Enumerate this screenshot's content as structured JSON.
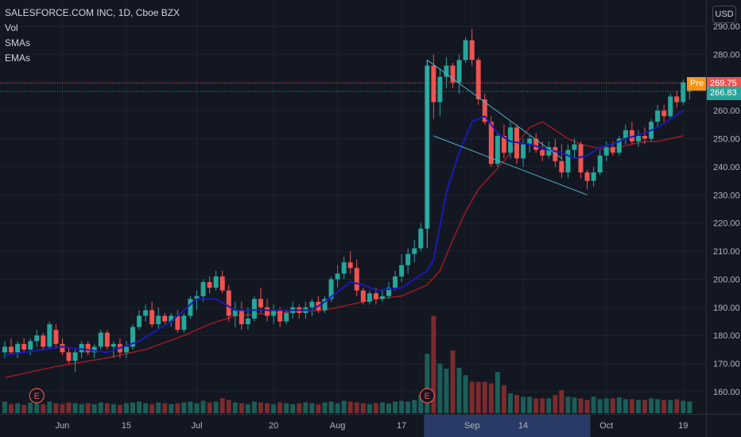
{
  "legend": {
    "title": "SALESFORCE.COM INC, 1D, Cboe BZX",
    "items": [
      "Vol",
      "SMAs",
      "EMAs"
    ]
  },
  "currency": "USD",
  "price_tags": {
    "pre_label": "Pre",
    "pre_value": "269.75",
    "last_value": "266.83"
  },
  "colors": {
    "background": "#131722",
    "grid": "#1f2330",
    "up": "#26a69a",
    "down": "#ef5350",
    "sma": "#1a1ab8",
    "ema": "#9c1b24",
    "wedge": "#4fb3c4",
    "pre_tag": "#f7931a",
    "last_tag": "#26a69a",
    "earnings": "#ef5350"
  },
  "chart_data": {
    "type": "candlestick",
    "symbol": "SALESFORCE.COM INC",
    "interval": "1D",
    "exchange": "Cboe BZX",
    "ylim": [
      150,
      295
    ],
    "y_ticks": [
      160,
      170,
      180,
      190,
      200,
      210,
      220,
      230,
      240,
      250,
      260,
      270,
      280,
      290
    ],
    "y_tick_labels": [
      "160.00",
      "170.00",
      "180.00",
      "190.00",
      "200.00",
      "210.00",
      "220.00",
      "230.00",
      "240.00",
      "250.00",
      "260.00",
      "270.00",
      "280.00",
      "290.00"
    ],
    "x_tick_labels": [
      {
        "label": "Jun",
        "bar": 9
      },
      {
        "label": "15",
        "bar": 19
      },
      {
        "label": "Jul",
        "bar": 30
      },
      {
        "label": "20",
        "bar": 42
      },
      {
        "label": "Aug",
        "bar": 52
      },
      {
        "label": "17",
        "bar": 62
      },
      {
        "label": "Sep",
        "bar": 73
      },
      {
        "label": "14",
        "bar": 81
      },
      {
        "label": "Oct",
        "bar": 94
      },
      {
        "label": "19",
        "bar": 106
      }
    ],
    "ohlc": [
      [
        174,
        178,
        172,
        176
      ],
      [
        176,
        179,
        173,
        174
      ],
      [
        174,
        178,
        172,
        177
      ],
      [
        177,
        179,
        174,
        175
      ],
      [
        175,
        179,
        173,
        178
      ],
      [
        178,
        182,
        176,
        180
      ],
      [
        180,
        181,
        175,
        176
      ],
      [
        176,
        185,
        175,
        184
      ],
      [
        182,
        184,
        176,
        177
      ],
      [
        177,
        179,
        173,
        174
      ],
      [
        174,
        176,
        170,
        171
      ],
      [
        171,
        175,
        167,
        174
      ],
      [
        174,
        178,
        172,
        177
      ],
      [
        177,
        178,
        173,
        174
      ],
      [
        174,
        177,
        172,
        176
      ],
      [
        176,
        182,
        175,
        181
      ],
      [
        181,
        182,
        175,
        176
      ],
      [
        176,
        178,
        172,
        177
      ],
      [
        177,
        179,
        172,
        174
      ],
      [
        174,
        178,
        172,
        176
      ],
      [
        176,
        184,
        175,
        183
      ],
      [
        183,
        189,
        182,
        187
      ],
      [
        187,
        191,
        185,
        189
      ],
      [
        189,
        192,
        183,
        184
      ],
      [
        184,
        190,
        182,
        187
      ],
      [
        187,
        188,
        184,
        185
      ],
      [
        185,
        188,
        183,
        187
      ],
      [
        187,
        189,
        181,
        182
      ],
      [
        182,
        188,
        181,
        187
      ],
      [
        187,
        194,
        186,
        193
      ],
      [
        193,
        196,
        189,
        194
      ],
      [
        194,
        200,
        192,
        199
      ],
      [
        199,
        201,
        195,
        197
      ],
      [
        197,
        203,
        196,
        201
      ],
      [
        201,
        203,
        195,
        196
      ],
      [
        196,
        198,
        185,
        187
      ],
      [
        187,
        192,
        183,
        189
      ],
      [
        189,
        192,
        182,
        184
      ],
      [
        184,
        190,
        182,
        186
      ],
      [
        186,
        194,
        185,
        193
      ],
      [
        193,
        197,
        188,
        190
      ],
      [
        190,
        193,
        185,
        187
      ],
      [
        187,
        191,
        184,
        189
      ],
      [
        189,
        190,
        183,
        185
      ],
      [
        185,
        189,
        184,
        188
      ],
      [
        188,
        192,
        186,
        190
      ],
      [
        190,
        191,
        186,
        188
      ],
      [
        188,
        192,
        186,
        190
      ],
      [
        190,
        193,
        187,
        192
      ],
      [
        192,
        194,
        188,
        189
      ],
      [
        189,
        194,
        188,
        193
      ],
      [
        193,
        201,
        192,
        200
      ],
      [
        200,
        205,
        197,
        202
      ],
      [
        202,
        208,
        200,
        206
      ],
      [
        206,
        210,
        202,
        204
      ],
      [
        204,
        207,
        194,
        196
      ],
      [
        196,
        197,
        191,
        192
      ],
      [
        192,
        196,
        191,
        195
      ],
      [
        195,
        197,
        191,
        193
      ],
      [
        193,
        196,
        192,
        194
      ],
      [
        194,
        199,
        193,
        197
      ],
      [
        197,
        203,
        196,
        201
      ],
      [
        201,
        209,
        199,
        205
      ],
      [
        205,
        211,
        202,
        209
      ],
      [
        209,
        214,
        206,
        211
      ],
      [
        211,
        220,
        210,
        218
      ],
      [
        218,
        278,
        216,
        276
      ],
      [
        276,
        280,
        257,
        263
      ],
      [
        263,
        275,
        258,
        272
      ],
      [
        272,
        279,
        268,
        276
      ],
      [
        276,
        277,
        268,
        270
      ],
      [
        270,
        280,
        266,
        278
      ],
      [
        278,
        286,
        277,
        285
      ],
      [
        285,
        289,
        276,
        278
      ],
      [
        278,
        279,
        262,
        264
      ],
      [
        264,
        266,
        255,
        256
      ],
      [
        256,
        258,
        240,
        241
      ],
      [
        241,
        252,
        240,
        251
      ],
      [
        251,
        255,
        243,
        245
      ],
      [
        245,
        256,
        243,
        254
      ],
      [
        254,
        255,
        241,
        243
      ],
      [
        243,
        250,
        240,
        248
      ],
      [
        248,
        251,
        245,
        250
      ],
      [
        250,
        252,
        245,
        246
      ],
      [
        246,
        249,
        242,
        244
      ],
      [
        244,
        249,
        243,
        247
      ],
      [
        247,
        250,
        240,
        242
      ],
      [
        242,
        248,
        236,
        238
      ],
      [
        238,
        248,
        236,
        246
      ],
      [
        246,
        250,
        243,
        248
      ],
      [
        248,
        249,
        236,
        238
      ],
      [
        238,
        239,
        232,
        235
      ],
      [
        235,
        240,
        233,
        238
      ],
      [
        238,
        246,
        237,
        244
      ],
      [
        244,
        249,
        242,
        247
      ],
      [
        247,
        249,
        244,
        245
      ],
      [
        245,
        251,
        244,
        250
      ],
      [
        250,
        255,
        248,
        253
      ],
      [
        253,
        256,
        248,
        249
      ],
      [
        249,
        253,
        247,
        251
      ],
      [
        251,
        254,
        248,
        250
      ],
      [
        250,
        257,
        249,
        256
      ],
      [
        256,
        262,
        254,
        260
      ],
      [
        260,
        262,
        256,
        258
      ],
      [
        258,
        266,
        257,
        265
      ],
      [
        265,
        267,
        261,
        263
      ],
      [
        263,
        271,
        262,
        270
      ],
      [
        267,
        268,
        264,
        267
      ]
    ],
    "volume": [
      14,
      11,
      12,
      10,
      13,
      12,
      11,
      14,
      12,
      11,
      13,
      12,
      11,
      12,
      11,
      13,
      12,
      11,
      10,
      12,
      13,
      14,
      12,
      11,
      13,
      12,
      11,
      12,
      13,
      14,
      12,
      15,
      13,
      14,
      18,
      16,
      13,
      12,
      11,
      14,
      13,
      12,
      11,
      13,
      12,
      11,
      12,
      13,
      12,
      11,
      13,
      14,
      12,
      15,
      14,
      13,
      12,
      11,
      12,
      13,
      12,
      14,
      15,
      14,
      16,
      22,
      72,
      118,
      60,
      54,
      76,
      55,
      46,
      38,
      38,
      38,
      36,
      50,
      34,
      24,
      22,
      20,
      20,
      18,
      18,
      18,
      22,
      28,
      20,
      19,
      18,
      16,
      20,
      17,
      18,
      18,
      19,
      17,
      17,
      16,
      16,
      18,
      17,
      16,
      16,
      17,
      15,
      14
    ],
    "volume_ylim": [
      0,
      130
    ],
    "sma": [
      170,
      171,
      172,
      173,
      174,
      175,
      175,
      176,
      176,
      175,
      175,
      174,
      174,
      174,
      174,
      175,
      175,
      175,
      175,
      174,
      175,
      176,
      178,
      179,
      180,
      181,
      182,
      184,
      186,
      188,
      190,
      191,
      192,
      193,
      193,
      193,
      192,
      191,
      190,
      190,
      189,
      189,
      189,
      189,
      189,
      189,
      189,
      189,
      189,
      190,
      191,
      193,
      196,
      198,
      199,
      200,
      199,
      198,
      197,
      197,
      198,
      200,
      203,
      206,
      208,
      210,
      214,
      222,
      230,
      238,
      244,
      250,
      255,
      258,
      260,
      258,
      255,
      252,
      250,
      248,
      247,
      246,
      246,
      246,
      245,
      245,
      244,
      243,
      242,
      243,
      244,
      245,
      246,
      247,
      248,
      249,
      251,
      252,
      253,
      253,
      254,
      256,
      258,
      260,
      262,
      263,
      265,
      266
    ],
    "ema": [
      165,
      166,
      167,
      168,
      168,
      169,
      169,
      170,
      170,
      171,
      171,
      171,
      172,
      172,
      172,
      173,
      173,
      174,
      174,
      174,
      175,
      175,
      176,
      177,
      178,
      178,
      179,
      180,
      181,
      182,
      183,
      184,
      185,
      186,
      186,
      187,
      187,
      187,
      187,
      188,
      188,
      188,
      188,
      188,
      188,
      188,
      188,
      189,
      189,
      189,
      190,
      190,
      191,
      192,
      193,
      193,
      194,
      194,
      194,
      194,
      195,
      196,
      197,
      199,
      200,
      202,
      206,
      211,
      216,
      221,
      226,
      230,
      234,
      237,
      240,
      242,
      244,
      246,
      247,
      248,
      249,
      249,
      249,
      249,
      249,
      249,
      249,
      248,
      248,
      248,
      248,
      248,
      249,
      249,
      249,
      249,
      249,
      250,
      250,
      250,
      250,
      251,
      251,
      252,
      252,
      253,
      253,
      254
    ],
    "sma_points": [
      [
        0,
        173
      ],
      [
        9,
        176
      ],
      [
        16,
        174
      ],
      [
        21,
        178
      ],
      [
        26,
        185
      ],
      [
        30,
        193
      ],
      [
        33,
        193
      ],
      [
        36,
        189
      ],
      [
        40,
        189
      ],
      [
        44,
        189
      ],
      [
        48,
        189
      ],
      [
        50,
        192
      ],
      [
        54,
        199
      ],
      [
        56,
        198
      ],
      [
        58,
        196
      ],
      [
        62,
        197
      ],
      [
        66,
        203
      ],
      [
        67,
        207
      ],
      [
        69,
        231
      ],
      [
        71,
        245
      ],
      [
        73,
        256
      ],
      [
        75,
        258
      ],
      [
        77,
        252
      ],
      [
        79,
        249
      ],
      [
        82,
        248
      ],
      [
        85,
        246
      ],
      [
        87,
        245
      ],
      [
        89,
        243
      ],
      [
        91,
        244
      ],
      [
        93,
        247
      ],
      [
        95,
        248
      ],
      [
        97,
        250
      ],
      [
        100,
        252
      ],
      [
        102,
        254
      ],
      [
        104,
        257
      ],
      [
        106,
        260
      ]
    ],
    "ema_points": [
      [
        0,
        165
      ],
      [
        8,
        169
      ],
      [
        16,
        172
      ],
      [
        22,
        175
      ],
      [
        28,
        180
      ],
      [
        32,
        184
      ],
      [
        36,
        187
      ],
      [
        42,
        188
      ],
      [
        50,
        189
      ],
      [
        58,
        193
      ],
      [
        62,
        194
      ],
      [
        66,
        198
      ],
      [
        68,
        203
      ],
      [
        70,
        214
      ],
      [
        72,
        224
      ],
      [
        74,
        232
      ],
      [
        76,
        237
      ],
      [
        78,
        242
      ],
      [
        80,
        248
      ],
      [
        82,
        254
      ],
      [
        84,
        256
      ],
      [
        86,
        253
      ],
      [
        88,
        250
      ],
      [
        90,
        248
      ],
      [
        92,
        247
      ],
      [
        94,
        246
      ],
      [
        96,
        247
      ],
      [
        98,
        248
      ],
      [
        100,
        249
      ],
      [
        102,
        249
      ],
      [
        104,
        250
      ],
      [
        106,
        251
      ]
    ],
    "pre_price": 269.75,
    "last_price": 266.83,
    "wedge_lines": [
      {
        "from": [
          66,
          211
        ],
        "to": [
          66,
          278
        ]
      },
      {
        "from": [
          66,
          278
        ],
        "to": [
          87,
          243
        ]
      },
      {
        "from": [
          67,
          251
        ],
        "to": [
          91,
          230
        ]
      }
    ],
    "earnings_markers": [
      {
        "label": "E",
        "bar": 5
      },
      {
        "label": "E",
        "bar": 66
      }
    ],
    "highlight_range": {
      "from_bar": 66,
      "to_bar": 91
    }
  }
}
